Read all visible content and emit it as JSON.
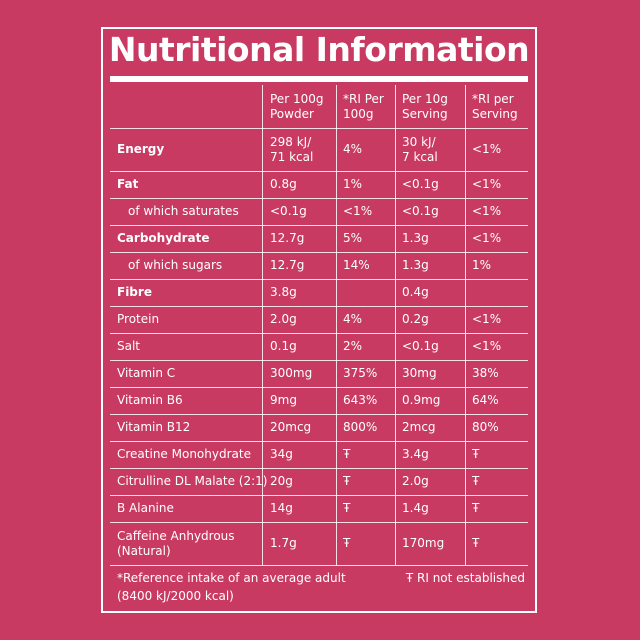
{
  "title": "Nutritional Information",
  "table": {
    "header": [
      [
        "Per 100g",
        "Powder"
      ],
      [
        "*RI Per",
        "100g"
      ],
      [
        "Per 10g",
        "Serving"
      ],
      [
        "*RI per",
        "Serving"
      ]
    ],
    "rows": [
      {
        "label": "Energy",
        "bold": true,
        "values": [
          [
            "298 kJ/",
            "71 kcal"
          ],
          "4%",
          [
            "30 kJ/",
            "7 kcal"
          ],
          "<1%"
        ]
      },
      {
        "label": "Fat",
        "bold": true,
        "values": [
          "0.8g",
          "1%",
          "<0.1g",
          "<1%"
        ]
      },
      {
        "label": "of which saturates",
        "indent": true,
        "values": [
          "<0.1g",
          "<1%",
          "<0.1g",
          "<1%"
        ]
      },
      {
        "label": "Carbohydrate",
        "bold": true,
        "values": [
          "12.7g",
          "5%",
          "1.3g",
          "<1%"
        ]
      },
      {
        "label": "of which sugars",
        "indent": true,
        "values": [
          "12.7g",
          "14%",
          "1.3g",
          "1%"
        ]
      },
      {
        "label": "Fibre",
        "bold": true,
        "values": [
          "3.8g",
          null,
          "0.4g",
          null
        ]
      },
      {
        "label": "Protein",
        "values": [
          "2.0g",
          "4%",
          "0.2g",
          "<1%"
        ]
      },
      {
        "label": "Salt",
        "values": [
          "0.1g",
          "2%",
          "<0.1g",
          "<1%"
        ]
      },
      {
        "label": "Vitamin C",
        "values": [
          "300mg",
          "375%",
          "30mg",
          "38%"
        ]
      },
      {
        "label": "Vitamin B6",
        "values": [
          "9mg",
          "643%",
          "0.9mg",
          "64%"
        ]
      },
      {
        "label": "Vitamin B12",
        "values": [
          "20mcg",
          "800%",
          "2mcg",
          "80%"
        ]
      },
      {
        "label": "Creatine Monohydrate",
        "values": [
          "34g",
          "Ŧ",
          "3.4g",
          "Ŧ"
        ]
      },
      {
        "label": "Citrulline DL Malate (2:1)",
        "values": [
          "20g",
          "Ŧ",
          "2.0g",
          "Ŧ"
        ]
      },
      {
        "label": "B Alanine",
        "values": [
          "14g",
          "Ŧ",
          "1.4g",
          "Ŧ"
        ]
      },
      {
        "label": [
          "Caffeine Anhydrous",
          "(Natural)"
        ],
        "values": [
          "1.7g",
          "Ŧ",
          "170mg",
          "Ŧ"
        ]
      }
    ]
  },
  "footnote": {
    "reference": [
      "*Reference intake of an average adult",
      "(8400 kJ/2000 kcal)"
    ],
    "not_established": "Ŧ RI not established"
  }
}
